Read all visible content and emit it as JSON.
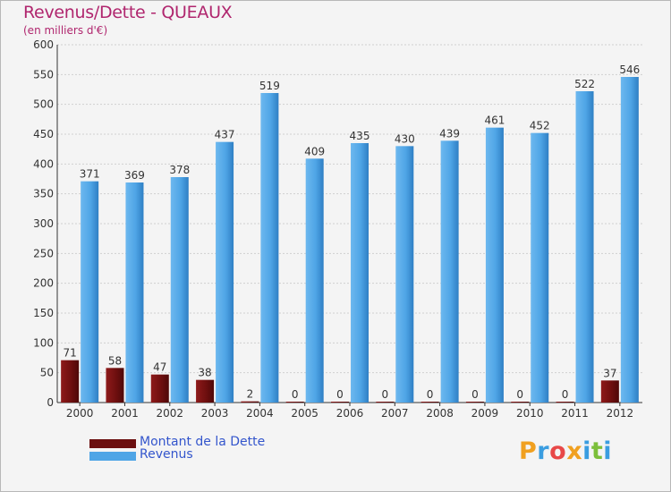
{
  "title": "Revenus/Dette - QUEAUX",
  "subtitle": "(en milliers d'€)",
  "colors": {
    "dette": "#7a1212",
    "revenus": "#4fa5e6",
    "title": "#b0266e",
    "legend_text": "#3355cc"
  },
  "legend": [
    {
      "label": "Montant de la Dette",
      "color": "#7a1212"
    },
    {
      "label": "Revenus",
      "color": "#4fa5e6"
    }
  ],
  "logo": {
    "text": "Proxiti",
    "letters": [
      "P",
      "r",
      "o",
      "x",
      "i",
      "t",
      "i"
    ]
  },
  "chart_data": {
    "type": "bar",
    "title": "Revenus/Dette - QUEAUX",
    "subtitle": "(en milliers d'€)",
    "categories": [
      "2000",
      "2001",
      "2002",
      "2003",
      "2004",
      "2005",
      "2006",
      "2007",
      "2008",
      "2009",
      "2010",
      "2011",
      "2012"
    ],
    "series": [
      {
        "name": "Montant de la Dette",
        "values": [
          71,
          58,
          47,
          38,
          2,
          0,
          0,
          0,
          0,
          0,
          0,
          0,
          37
        ]
      },
      {
        "name": "Revenus",
        "values": [
          371,
          369,
          378,
          437,
          519,
          409,
          435,
          430,
          439,
          461,
          452,
          522,
          546
        ]
      }
    ],
    "ylim": [
      0,
      600
    ],
    "yticks": [
      0,
      50,
      100,
      150,
      200,
      250,
      300,
      350,
      400,
      450,
      500,
      550,
      600
    ],
    "grid": true,
    "legend_position": "bottom-left"
  }
}
